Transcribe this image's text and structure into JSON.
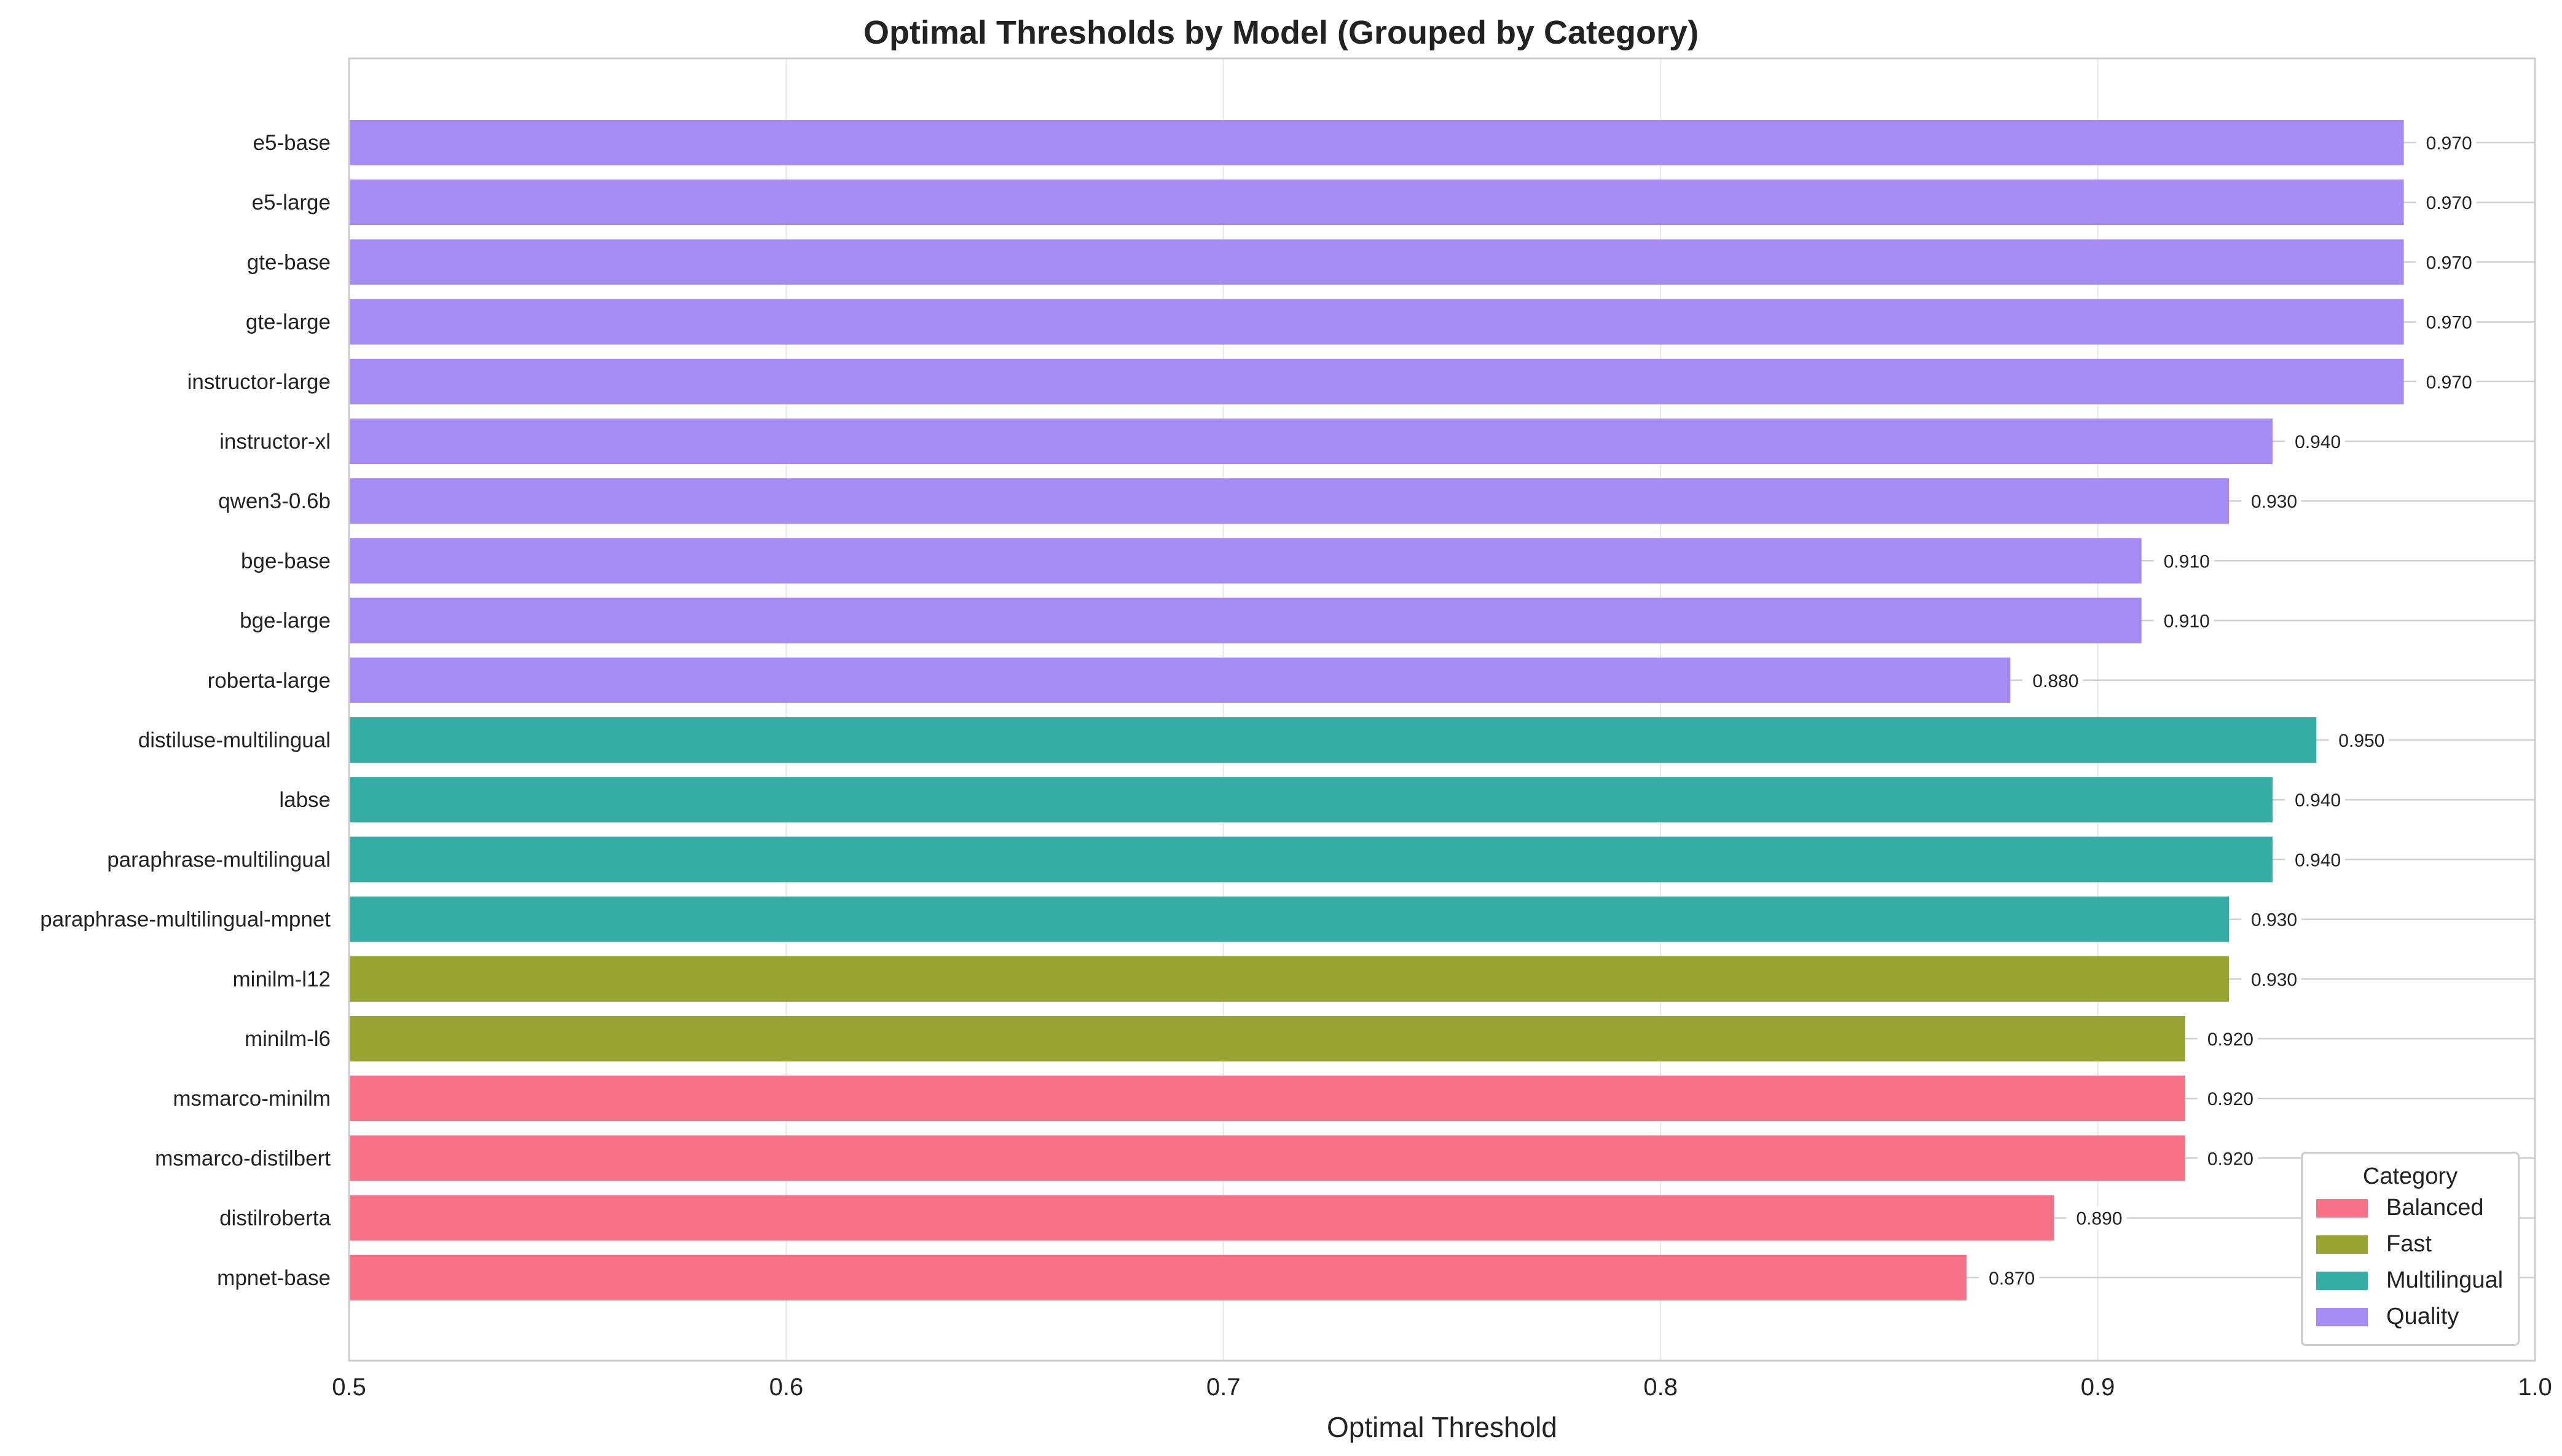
{
  "chart_data": {
    "type": "bar",
    "orientation": "horizontal",
    "title": "Optimal Thresholds by Model (Grouped by Category)",
    "xlabel": "Optimal Threshold",
    "ylabel": "",
    "xlim": [
      0.5,
      1.0
    ],
    "xticks": [
      "0.5",
      "0.6",
      "0.7",
      "0.8",
      "0.9",
      "1.0"
    ],
    "grid": true,
    "legend": {
      "title": "Category",
      "placement": "bottom-right",
      "entries": [
        {
          "label": "Balanced",
          "color": "#f77189"
        },
        {
          "label": "Fast",
          "color": "#97a431"
        },
        {
          "label": "Multilingual",
          "color": "#36ada4"
        },
        {
          "label": "Quality",
          "color": "#a48cf4"
        }
      ]
    },
    "bars": [
      {
        "model": "e5-base",
        "value": 0.97,
        "label": "0.970",
        "category": "Quality"
      },
      {
        "model": "e5-large",
        "value": 0.97,
        "label": "0.970",
        "category": "Quality"
      },
      {
        "model": "gte-base",
        "value": 0.97,
        "label": "0.970",
        "category": "Quality"
      },
      {
        "model": "gte-large",
        "value": 0.97,
        "label": "0.970",
        "category": "Quality"
      },
      {
        "model": "instructor-large",
        "value": 0.97,
        "label": "0.970",
        "category": "Quality"
      },
      {
        "model": "instructor-xl",
        "value": 0.94,
        "label": "0.940",
        "category": "Quality"
      },
      {
        "model": "qwen3-0.6b",
        "value": 0.93,
        "label": "0.930",
        "category": "Quality"
      },
      {
        "model": "bge-base",
        "value": 0.91,
        "label": "0.910",
        "category": "Quality"
      },
      {
        "model": "bge-large",
        "value": 0.91,
        "label": "0.910",
        "category": "Quality"
      },
      {
        "model": "roberta-large",
        "value": 0.88,
        "label": "0.880",
        "category": "Quality"
      },
      {
        "model": "distiluse-multilingual",
        "value": 0.95,
        "label": "0.950",
        "category": "Multilingual"
      },
      {
        "model": "labse",
        "value": 0.94,
        "label": "0.940",
        "category": "Multilingual"
      },
      {
        "model": "paraphrase-multilingual",
        "value": 0.94,
        "label": "0.940",
        "category": "Multilingual"
      },
      {
        "model": "paraphrase-multilingual-mpnet",
        "value": 0.93,
        "label": "0.930",
        "category": "Multilingual"
      },
      {
        "model": "minilm-l12",
        "value": 0.93,
        "label": "0.930",
        "category": "Fast"
      },
      {
        "model": "minilm-l6",
        "value": 0.92,
        "label": "0.920",
        "category": "Fast"
      },
      {
        "model": "msmarco-minilm",
        "value": 0.92,
        "label": "0.920",
        "category": "Balanced"
      },
      {
        "model": "msmarco-distilbert",
        "value": 0.92,
        "label": "0.920",
        "category": "Balanced"
      },
      {
        "model": "distilroberta",
        "value": 0.89,
        "label": "0.890",
        "category": "Balanced"
      },
      {
        "model": "mpnet-base",
        "value": 0.87,
        "label": "0.870",
        "category": "Balanced"
      }
    ]
  }
}
